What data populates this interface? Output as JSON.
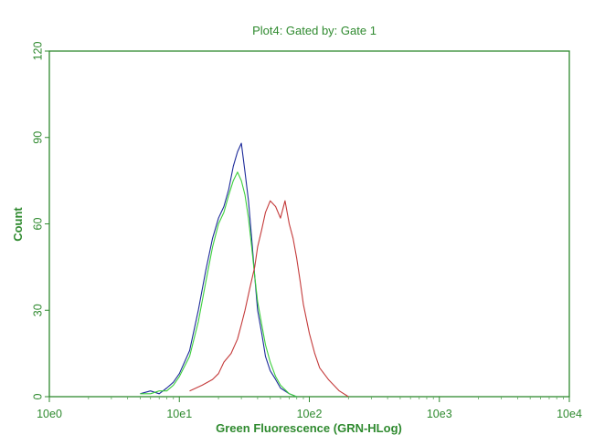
{
  "chart_data": {
    "type": "line",
    "title": "Plot4:  Gated by: Gate 1",
    "xlabel": "Green Fluorescence (GRN-HLog)",
    "ylabel": "Count",
    "x_scale": "log",
    "xlim": [
      1,
      10000
    ],
    "ylim": [
      0,
      120
    ],
    "x_ticks": [
      1,
      10,
      100,
      1000,
      10000
    ],
    "x_tick_labels": [
      "10e0",
      "10e1",
      "10e2",
      "10e3",
      "10e4"
    ],
    "y_ticks": [
      0,
      30,
      60,
      90,
      120
    ],
    "y_tick_labels": [
      "0",
      "30",
      "60",
      "90",
      "120"
    ],
    "grid": false,
    "legend": "none",
    "series": [
      {
        "color": "#1c2a9a",
        "x": [
          5,
          6,
          7,
          8,
          9,
          10,
          12,
          14,
          16,
          18,
          20,
          22,
          24,
          26,
          28,
          30,
          32,
          34,
          36,
          38,
          40,
          43,
          46,
          50,
          55,
          60,
          70,
          80
        ],
        "y": [
          1,
          2,
          1,
          3,
          5,
          8,
          16,
          30,
          44,
          55,
          62,
          66,
          72,
          80,
          85,
          88,
          78,
          68,
          55,
          42,
          30,
          22,
          14,
          9,
          6,
          3,
          1,
          0
        ]
      },
      {
        "color": "#3ccf3c",
        "x": [
          5,
          6,
          7,
          8,
          9,
          10,
          12,
          14,
          16,
          18,
          20,
          22,
          24,
          26,
          28,
          30,
          32,
          34,
          36,
          38,
          40,
          43,
          46,
          50,
          55,
          60,
          70,
          80
        ],
        "y": [
          1,
          1,
          2,
          2,
          4,
          7,
          14,
          26,
          40,
          52,
          60,
          64,
          70,
          75,
          78,
          75,
          70,
          62,
          52,
          42,
          33,
          25,
          18,
          12,
          7,
          4,
          1,
          0
        ]
      },
      {
        "color": "#c43a3a",
        "x": [
          12,
          15,
          18,
          20,
          22,
          25,
          28,
          30,
          32,
          35,
          38,
          40,
          43,
          46,
          50,
          55,
          60,
          65,
          70,
          75,
          80,
          85,
          90,
          100,
          110,
          120,
          140,
          170,
          200
        ],
        "y": [
          2,
          4,
          6,
          8,
          12,
          15,
          20,
          25,
          30,
          38,
          45,
          52,
          58,
          64,
          68,
          66,
          62,
          68,
          60,
          55,
          48,
          40,
          32,
          22,
          15,
          10,
          6,
          2,
          0
        ]
      }
    ]
  }
}
